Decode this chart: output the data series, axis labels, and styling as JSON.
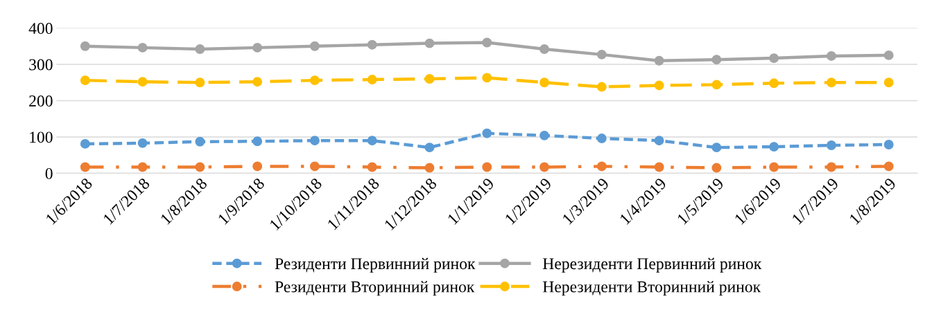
{
  "chart_data": {
    "type": "line",
    "categories": [
      "1/6/2018",
      "1/7/2018",
      "1/8/2018",
      "1/9/2018",
      "1/10/2018",
      "1/11/2018",
      "1/12/2018",
      "1/1/2019",
      "1/2/2019",
      "1/3/2019",
      "1/4/2019",
      "1/5/2019",
      "1/6/2019",
      "1/7/2019",
      "1/8/2019"
    ],
    "series": [
      {
        "name": "Резиденти Первинний ринок",
        "color": "#5b9bd5",
        "line_style": "dashed",
        "values": [
          81,
          83,
          87,
          88,
          90,
          90,
          71,
          110,
          104,
          96,
          90,
          71,
          73,
          77,
          79
        ]
      },
      {
        "name": "Резиденти Вторинний ринок",
        "color": "#ed7d31",
        "line_style": "dashdot",
        "values": [
          17,
          17,
          17,
          19,
          19,
          17,
          15,
          17,
          17,
          19,
          17,
          15,
          17,
          17,
          19
        ]
      },
      {
        "name": "Нерезиденти Первинний ринок",
        "color": "#a5a5a5",
        "line_style": "solid",
        "values": [
          350,
          346,
          342,
          346,
          350,
          354,
          358,
          360,
          342,
          327,
          310,
          313,
          317,
          323,
          325
        ]
      },
      {
        "name": "Нерезиденти Вторинний ринок",
        "color": "#ffc000",
        "line_style": "longdash",
        "values": [
          256,
          252,
          250,
          252,
          256,
          258,
          260,
          263,
          250,
          238,
          242,
          244,
          248,
          250,
          250
        ]
      }
    ],
    "ylim": [
      0,
      400
    ],
    "yticks": [
      0,
      100,
      200,
      300,
      400
    ],
    "grid": "y",
    "legend": "bottom",
    "marker": "circle"
  }
}
